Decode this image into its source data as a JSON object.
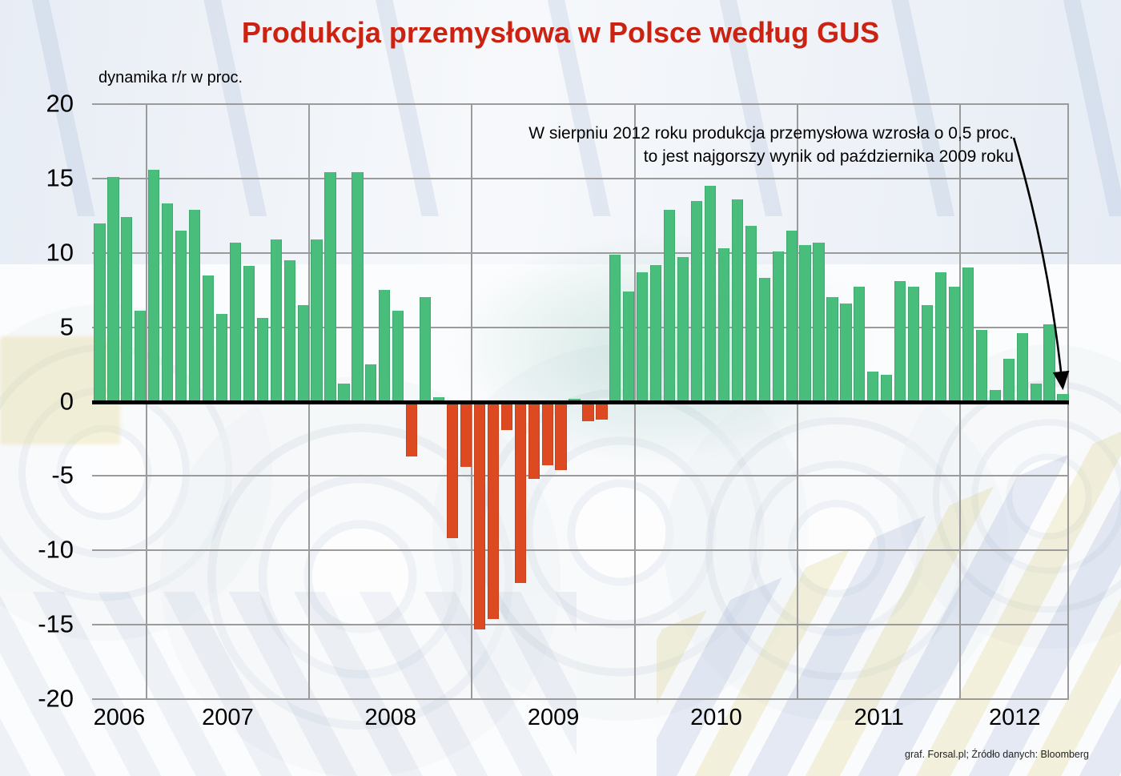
{
  "title": "Produkcja przemysłowa w Polsce według GUS",
  "ylabel_note": "dynamika r/r w proc.",
  "annotation": {
    "line1": "W sierpniu 2012 roku produkcja przemysłowa wzrosła o 0,5 proc.",
    "line2": "to jest najgorszy wynik od października 2009 roku"
  },
  "source": "graf. Forsal.pl; Źródło danych: Bloomberg",
  "colors": {
    "title": "#cc2211",
    "positive_bar": "#49bd7b",
    "negative_bar": "#dd4a22",
    "grid": "#9b9b9b",
    "zero_line": "#000000"
  },
  "chart_data": {
    "type": "bar",
    "title": "Produkcja przemysłowa w Polsce według GUS",
    "ylabel": "dynamika r/r w proc.",
    "unit": "percent, year-over-year",
    "ylim": [
      -20,
      20
    ],
    "yticks": [
      20,
      15,
      10,
      5,
      0,
      -5,
      -10,
      -15,
      -20
    ],
    "grid": true,
    "legend": "none",
    "years": [
      {
        "label": "2006",
        "values": [
          12.0,
          15.1,
          12.4,
          6.1
        ]
      },
      {
        "label": "2007",
        "values": [
          15.6,
          13.3,
          11.5,
          12.9,
          8.5,
          5.9,
          10.7,
          9.1,
          5.6,
          10.9,
          9.5,
          6.5
        ]
      },
      {
        "label": "2008",
        "values": [
          10.9,
          15.4,
          1.2,
          15.4,
          2.5,
          7.5,
          6.1,
          -3.7,
          7.0,
          0.3,
          -9.2,
          -4.4
        ]
      },
      {
        "label": "2009",
        "values": [
          -15.3,
          -14.6,
          -1.9,
          -12.2,
          -5.2,
          -4.3,
          -4.6,
          0.2,
          -1.3,
          -1.2,
          9.9,
          7.4
        ]
      },
      {
        "label": "2010",
        "values": [
          8.7,
          9.2,
          12.9,
          9.7,
          13.5,
          14.5,
          10.3,
          13.6,
          11.8,
          8.3,
          10.1,
          11.5
        ]
      },
      {
        "label": "2011",
        "values": [
          10.5,
          10.7,
          7.0,
          6.6,
          7.7,
          2.0,
          1.8,
          8.1,
          7.7,
          6.5,
          8.7,
          7.7
        ]
      },
      {
        "label": "2012",
        "values": [
          9.0,
          4.8,
          0.8,
          2.9,
          4.6,
          1.2,
          5.2,
          0.5
        ]
      }
    ],
    "highlighted_point": {
      "label": "sierpień 2012",
      "value": 0.5
    }
  }
}
